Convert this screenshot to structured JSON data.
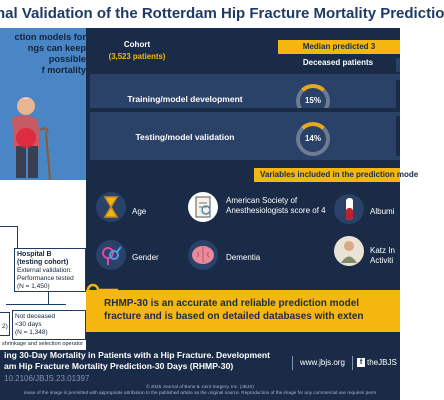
{
  "title": "nal Validation of the Rotterdam Hip Fracture Mortality Predictio",
  "intro": {
    "lines": [
      "ction models for",
      "ngs can keep",
      "possible",
      "f mortality"
    ]
  },
  "flow": {
    "hospital_title": "Hospital B",
    "hospital_sub": "(testing cohort)",
    "hospital_lines": [
      "External validation:",
      "Performance tested",
      "(N = 1,450)"
    ],
    "left_box": "Not deceased",
    "left_box2": "<30 days",
    "left_box3": "(N = 1,348)",
    "left_fragment": "2)",
    "footnote": "shrinkage and selection operator"
  },
  "table": {
    "cohort_header": "Cohort",
    "cohort_sub": "(3,523 patients)",
    "median_header": "Median predicted 3",
    "deceased_header": "Deceased patients",
    "rows": [
      {
        "label": "Training/model development",
        "value": "15%"
      },
      {
        "label": "Testing/model validation",
        "value": "14%"
      }
    ]
  },
  "variables": {
    "header": "Variables included in the prediction mode",
    "items": [
      {
        "label": "Age"
      },
      {
        "label": "American Society of Anesthesiologists score of 4"
      },
      {
        "label": "Albumi"
      },
      {
        "label": "Gender"
      },
      {
        "label": "Dementia"
      },
      {
        "label": "Katz In Activiti"
      }
    ]
  },
  "conclusion": {
    "line1": "RHMP-30 is an accurate and reliable prediction model",
    "line2": "fracture and is based on detailed databases with exten"
  },
  "footer": {
    "line1": "ing 30-Day Mortality in Patients with a Hip Fracture. Development",
    "line2": "am Hip Fracture Mortality Prediction-30 Days (RHMP-30)",
    "doi": "10.2106/JBJS.23.01397",
    "website": "www.jbjs.org",
    "social": "theJBJS",
    "copyright": "© 2025 Journal of Bone & Joint Surgery, Inc. (JBJS)",
    "notice": "reuse of the image is permitted with appropriate attribution to the published article as the original source. Reproduction of the image for any commercial use requires perm"
  },
  "colors": {
    "navy": "#1a2b48",
    "accent_yellow": "#f5b70f",
    "panel_blue": "#4a86c5"
  }
}
